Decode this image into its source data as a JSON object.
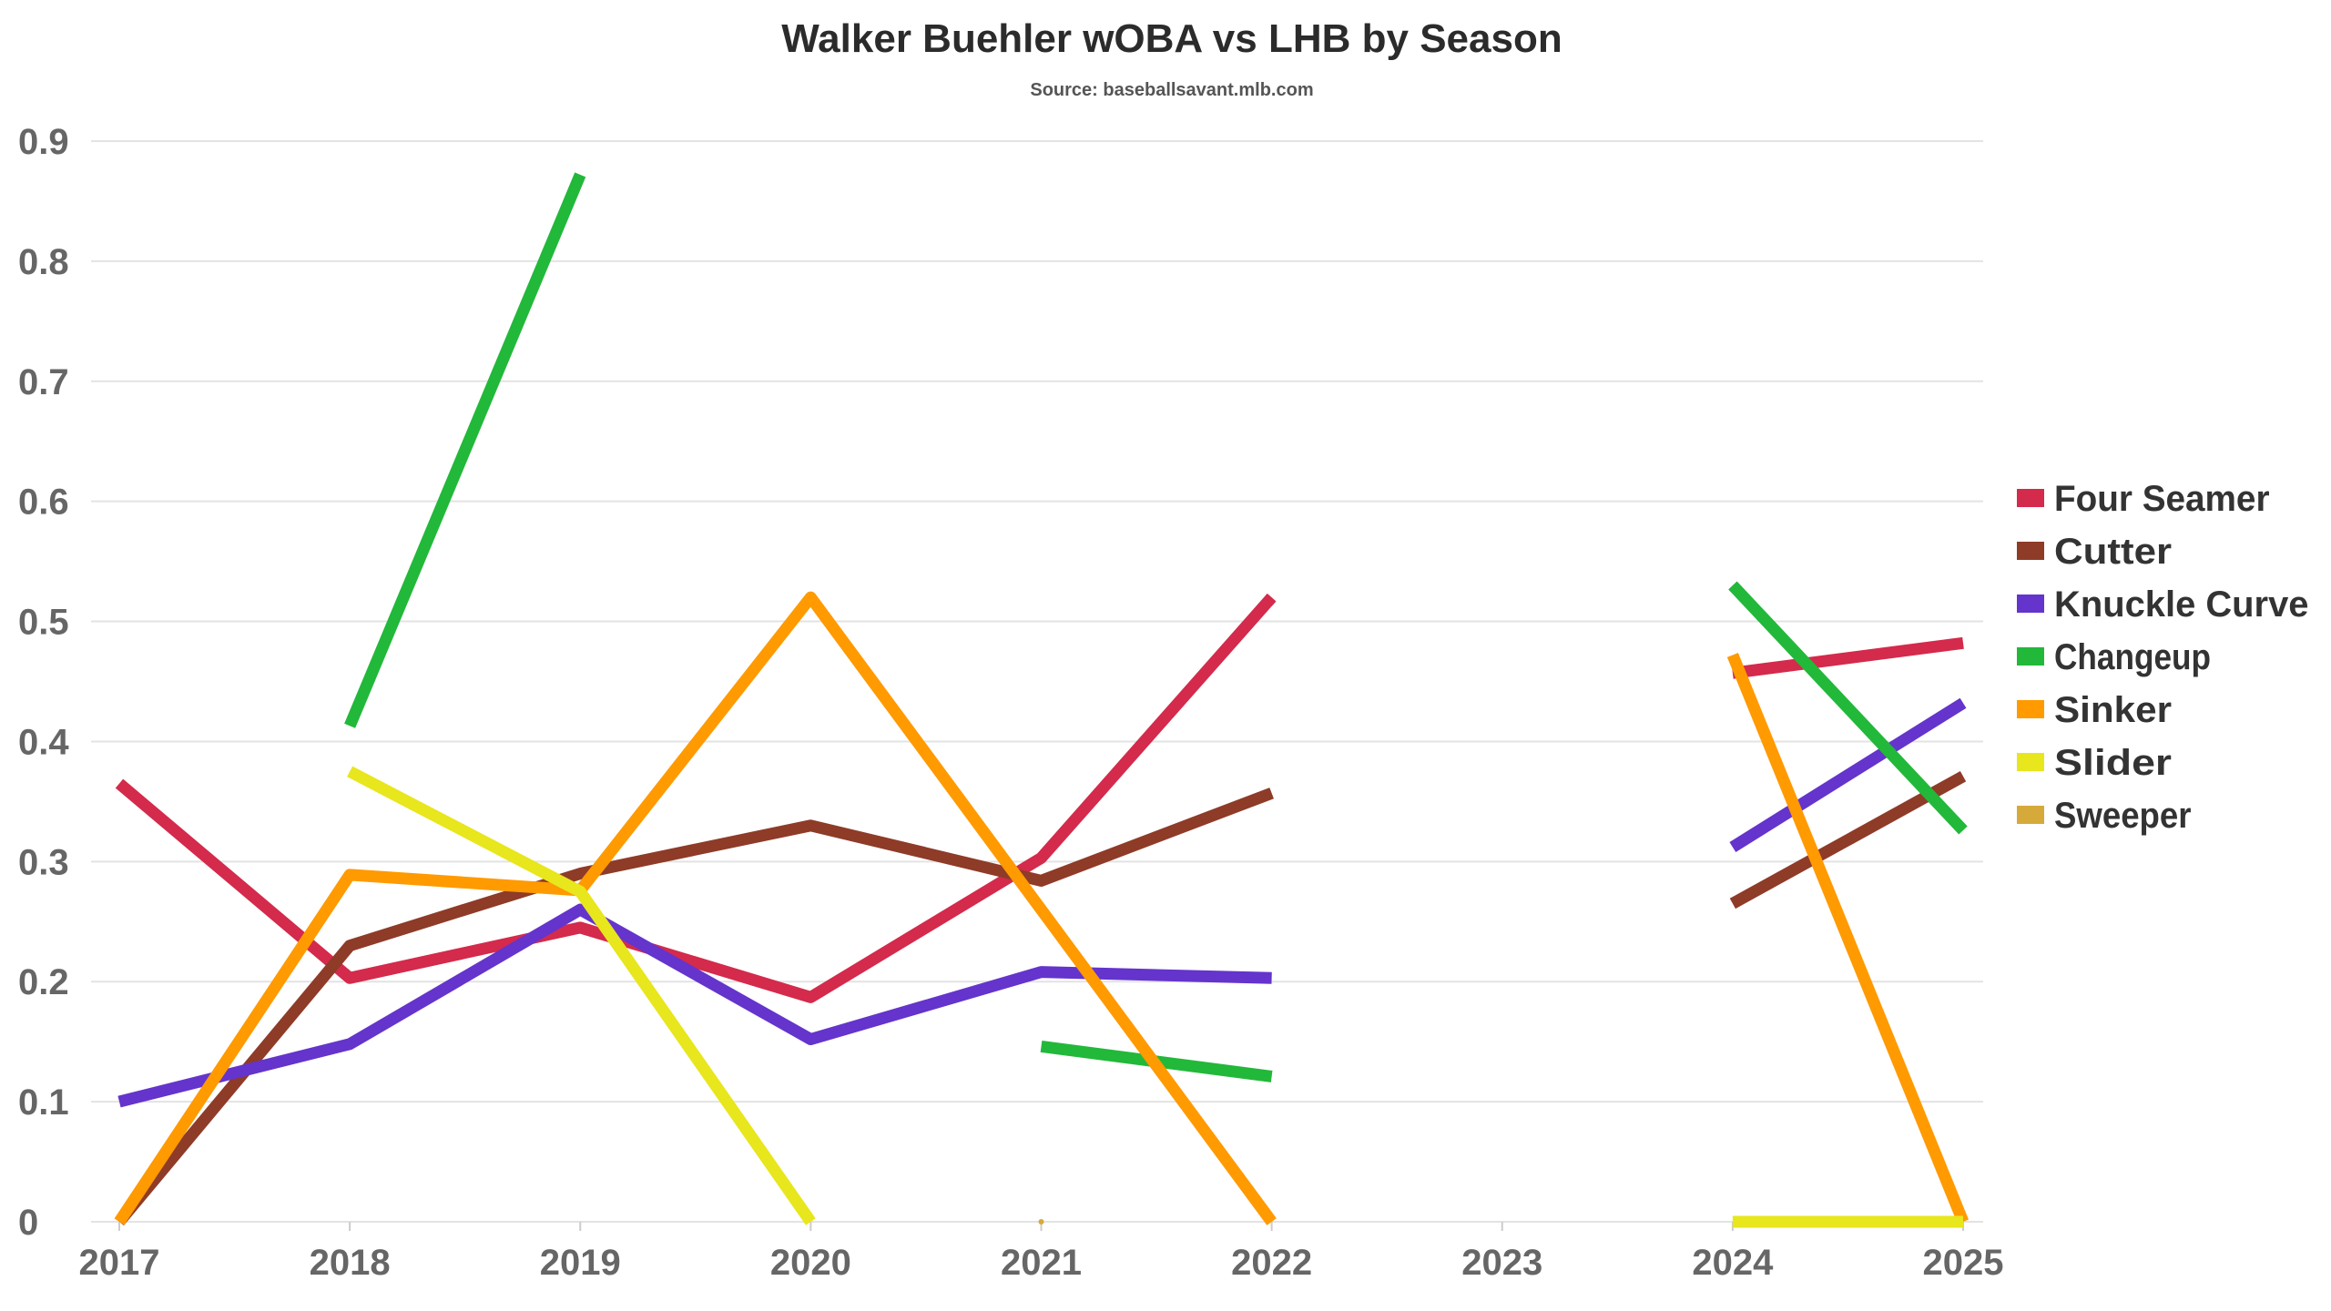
{
  "chart_data": {
    "type": "line",
    "title": "Walker Buehler wOBA vs LHB by Season",
    "subtitle": "Source: baseballsavant.mlb.com",
    "xlabel": "",
    "ylabel": "",
    "categories": [
      "2017",
      "2018",
      "2019",
      "2020",
      "2021",
      "2022",
      "2023",
      "2024",
      "2025"
    ],
    "ylim": [
      0,
      0.9
    ],
    "yticks": [
      "0",
      "0.1",
      "0.2",
      "0.3",
      "0.4",
      "0.5",
      "0.6",
      "0.7",
      "0.8",
      "0.9"
    ],
    "grid": true,
    "legend_position": "right",
    "series": [
      {
        "name": "Four Seamer",
        "color": "#d42a4b",
        "values": [
          0.365,
          0.203,
          0.245,
          0.187,
          0.303,
          0.52,
          null,
          0.457,
          0.482
        ]
      },
      {
        "name": "Cutter",
        "color": "#8e3b28",
        "values": [
          0,
          0.23,
          0.29,
          0.33,
          0.284,
          0.357,
          null,
          0.265,
          0.371
        ]
      },
      {
        "name": "Knuckle Curve",
        "color": "#6434cc",
        "values": [
          0.1,
          0.148,
          0.26,
          0.152,
          0.208,
          0.203,
          null,
          0.312,
          0.432
        ]
      },
      {
        "name": "Changeup",
        "color": "#22b83a",
        "values": [
          null,
          0.413,
          0.872,
          null,
          0.146,
          0.121,
          null,
          0.53,
          0.326
        ]
      },
      {
        "name": "Sinker",
        "color": "#ff9a00",
        "values": [
          0,
          0.289,
          0.276,
          0.52,
          0.26,
          0,
          null,
          0.472,
          0
        ]
      },
      {
        "name": "Slider",
        "color": "#e8e61c",
        "values": [
          null,
          0.375,
          0.275,
          0,
          null,
          null,
          null,
          0,
          0
        ]
      },
      {
        "name": "Sweeper",
        "color": "#d6aa3a",
        "values": [
          null,
          null,
          null,
          null,
          0,
          null,
          null,
          null,
          null
        ]
      }
    ]
  }
}
